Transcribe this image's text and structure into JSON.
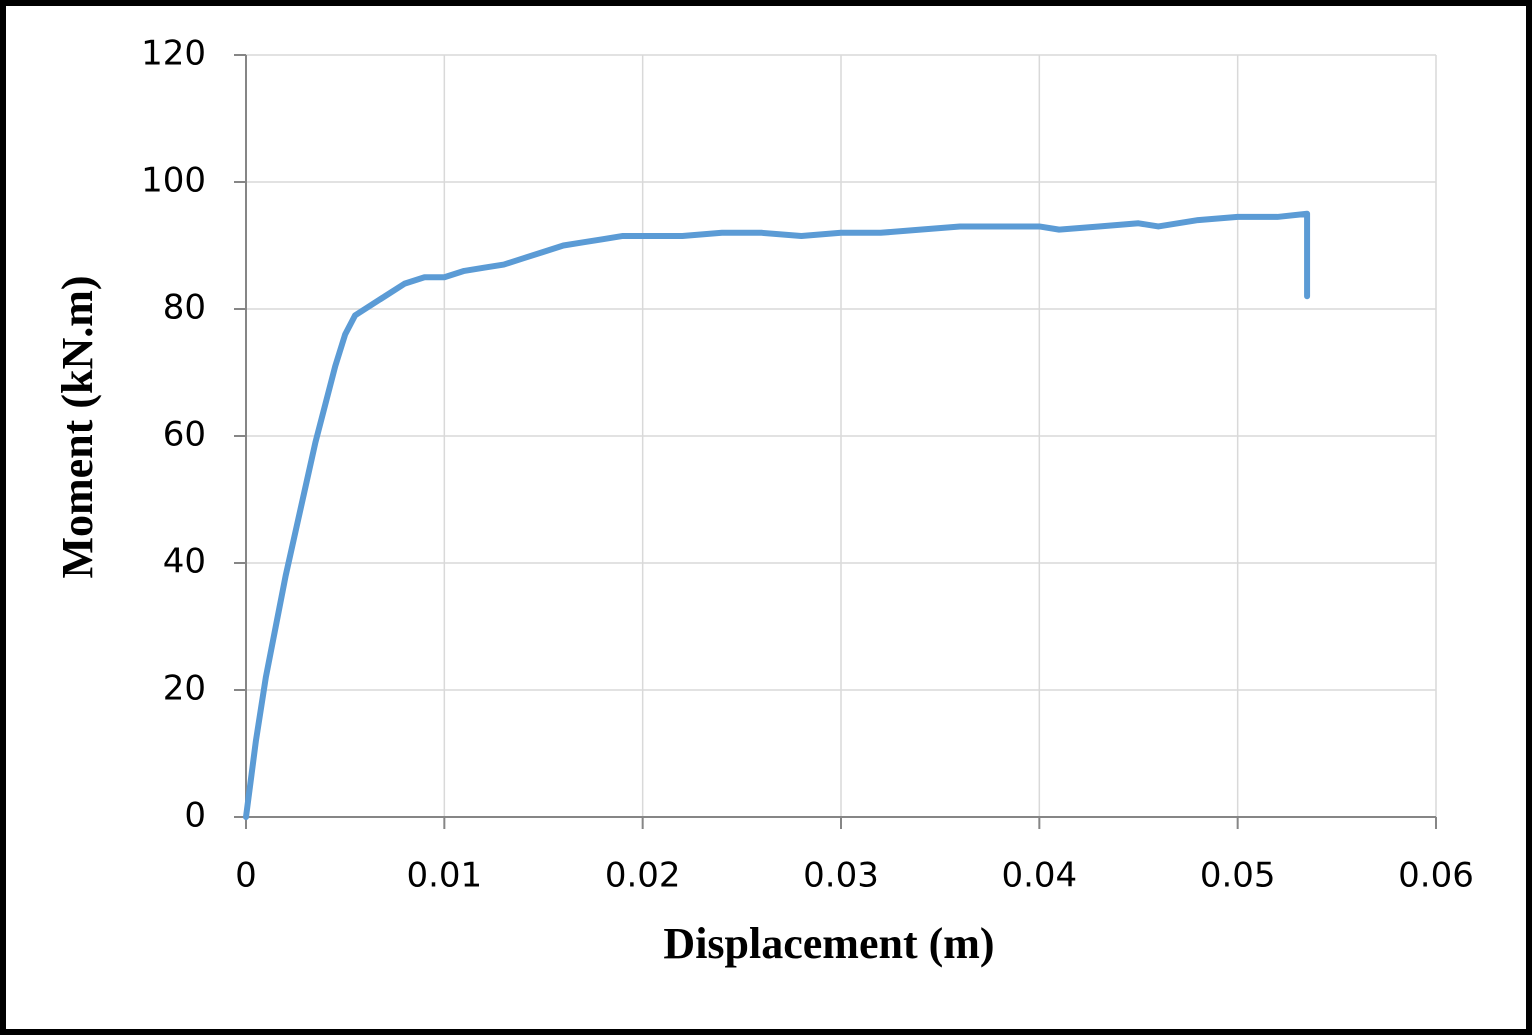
{
  "chart_data": {
    "type": "line",
    "xlabel": "Displacement (m)",
    "ylabel": "Moment (kN.m)",
    "xlim": [
      0,
      0.06
    ],
    "xticks": [
      0,
      0.01,
      0.02,
      0.03,
      0.04,
      0.05,
      0.06
    ],
    "ylim": [
      0,
      120
    ],
    "yticks": [
      0,
      20,
      40,
      60,
      80,
      100,
      120
    ],
    "grid": true,
    "series": [
      {
        "color": "#5b9bd5",
        "x": [
          0,
          0.0005,
          0.001,
          0.0015,
          0.002,
          0.0025,
          0.003,
          0.0035,
          0.004,
          0.0045,
          0.005,
          0.0055,
          0.006,
          0.007,
          0.008,
          0.009,
          0.01,
          0.011,
          0.012,
          0.013,
          0.014,
          0.015,
          0.016,
          0.017,
          0.018,
          0.019,
          0.02,
          0.022,
          0.024,
          0.026,
          0.028,
          0.03,
          0.032,
          0.034,
          0.036,
          0.038,
          0.04,
          0.041,
          0.043,
          0.045,
          0.046,
          0.048,
          0.05,
          0.052,
          0.0535,
          0.0535
        ],
        "values": [
          0,
          12,
          22,
          30,
          38,
          45,
          52,
          59,
          65,
          71,
          76,
          79,
          80,
          82,
          84,
          85,
          85,
          86,
          86.5,
          87,
          88,
          89,
          90,
          90.5,
          91,
          91.5,
          91.5,
          91.5,
          92,
          92,
          91.5,
          92,
          92,
          92.5,
          93,
          93,
          93,
          92.5,
          93,
          93.5,
          93,
          94,
          94.5,
          94.5,
          95,
          82
        ]
      }
    ]
  }
}
